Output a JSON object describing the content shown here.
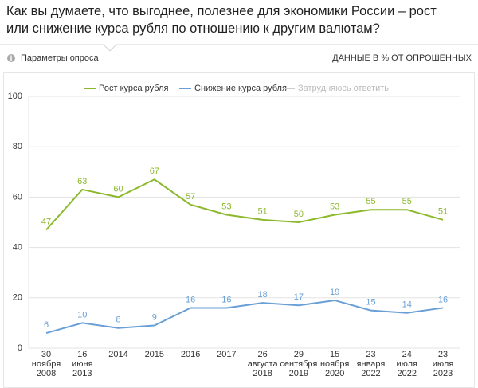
{
  "header": {
    "title": "Как вы думаете, что выгоднее, полезнее для экономики России – рост или снижение курса рубля по отношению к другим валютам?",
    "params": "Параметры опроса",
    "units_note": "ДАННЫЕ В % ОТ ОПРОШЕННЫХ"
  },
  "chart_data": {
    "type": "line",
    "categories": [
      "30\nноября\n2008",
      "16\nиюня\n2013",
      "2014",
      "2015",
      "2016",
      "2017",
      "26\nавгуста\n2018",
      "29\nсентября\n2019",
      "15\nноября\n2020",
      "23\nянваря\n2022",
      "24\nиюля\n2022",
      "23\nиюля\n2023"
    ],
    "series": [
      {
        "name": "Рост курса рубля",
        "color": "#8cb92c",
        "values": [
          47,
          63,
          60,
          67,
          57,
          53,
          51,
          50,
          53,
          55,
          55,
          51
        ]
      },
      {
        "name": "Снижение курса рубля",
        "color": "#6a9fd6",
        "values": [
          6,
          10,
          8,
          9,
          16,
          16,
          18,
          17,
          19,
          15,
          14,
          16
        ]
      },
      {
        "name": "Затрудняюсь ответить",
        "color": "#cccccc",
        "hidden": true,
        "values": [
          null,
          null,
          null,
          null,
          null,
          null,
          null,
          null,
          null,
          null,
          null,
          null
        ]
      }
    ],
    "ylim": [
      0,
      100
    ],
    "yticks": [
      0,
      20,
      40,
      60,
      80,
      100
    ],
    "grid": true
  }
}
